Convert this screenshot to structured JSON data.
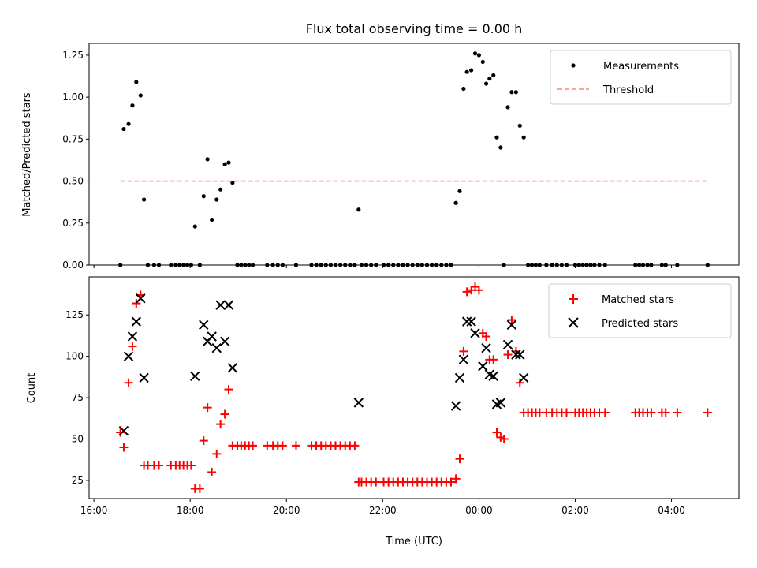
{
  "title": "Flux total observing time = 0.00 h",
  "top_ylabel": "Matched/Predicted stars",
  "bottom_ylabel": "Count",
  "xlabel": "Time (UTC)",
  "colors": {
    "measurements": "#000000",
    "threshold": "#ff8080",
    "matched": "#ff0000",
    "predicted": "#000000"
  },
  "chart_data": [
    {
      "type": "scatter",
      "title": "Flux total observing time = 0.00 h",
      "xlabel": "",
      "ylabel": "Matched/Predicted stars",
      "x_units": "hours since 16:00 UTC",
      "xlim": [
        -0.1,
        13.4
      ],
      "ylim": [
        0,
        1.32
      ],
      "x_ticks": [
        "16:00",
        "18:00",
        "20:00",
        "22:00",
        "00:00",
        "02:00",
        "04:00"
      ],
      "y_ticks": [
        "0.00",
        "0.25",
        "0.50",
        "0.75",
        "1.00",
        "1.25"
      ],
      "legend_position": "top-right",
      "grid": false,
      "series": [
        {
          "name": "Measurements",
          "marker": "dot",
          "points": [
            [
              0.55,
              0
            ],
            [
              0.62,
              0.81
            ],
            [
              0.72,
              0.84
            ],
            [
              0.8,
              0.95
            ],
            [
              0.88,
              1.09
            ],
            [
              0.97,
              1.01
            ],
            [
              1.04,
              0.39
            ],
            [
              1.12,
              0
            ],
            [
              1.25,
              0
            ],
            [
              1.35,
              0
            ],
            [
              1.6,
              0
            ],
            [
              1.7,
              0
            ],
            [
              1.78,
              0
            ],
            [
              1.86,
              0
            ],
            [
              1.94,
              0
            ],
            [
              2.02,
              0
            ],
            [
              2.1,
              0.23
            ],
            [
              2.2,
              0
            ],
            [
              2.28,
              0.41
            ],
            [
              2.36,
              0.63
            ],
            [
              2.45,
              0.27
            ],
            [
              2.55,
              0.39
            ],
            [
              2.63,
              0.45
            ],
            [
              2.72,
              0.6
            ],
            [
              2.8,
              0.61
            ],
            [
              2.88,
              0.49
            ],
            [
              2.98,
              0
            ],
            [
              3.06,
              0
            ],
            [
              3.14,
              0
            ],
            [
              3.22,
              0
            ],
            [
              3.3,
              0
            ],
            [
              3.6,
              0
            ],
            [
              3.72,
              0
            ],
            [
              3.82,
              0
            ],
            [
              3.92,
              0
            ],
            [
              4.2,
              0
            ],
            [
              4.52,
              0
            ],
            [
              4.62,
              0
            ],
            [
              4.72,
              0
            ],
            [
              4.82,
              0
            ],
            [
              4.92,
              0
            ],
            [
              5.02,
              0
            ],
            [
              5.12,
              0
            ],
            [
              5.22,
              0
            ],
            [
              5.32,
              0
            ],
            [
              5.42,
              0
            ],
            [
              5.5,
              0.33
            ],
            [
              5.56,
              0
            ],
            [
              5.66,
              0
            ],
            [
              5.76,
              0
            ],
            [
              5.86,
              0
            ],
            [
              6.02,
              0
            ],
            [
              6.12,
              0
            ],
            [
              6.22,
              0
            ],
            [
              6.32,
              0
            ],
            [
              6.42,
              0
            ],
            [
              6.52,
              0
            ],
            [
              6.62,
              0
            ],
            [
              6.72,
              0
            ],
            [
              6.82,
              0
            ],
            [
              6.92,
              0
            ],
            [
              7.02,
              0
            ],
            [
              7.12,
              0
            ],
            [
              7.22,
              0
            ],
            [
              7.32,
              0
            ],
            [
              7.42,
              0
            ],
            [
              7.52,
              0.37
            ],
            [
              7.6,
              0.44
            ],
            [
              7.68,
              1.05
            ],
            [
              7.75,
              1.15
            ],
            [
              7.84,
              1.16
            ],
            [
              7.92,
              1.26
            ],
            [
              8.0,
              1.25
            ],
            [
              8.08,
              1.21
            ],
            [
              8.15,
              1.08
            ],
            [
              8.22,
              1.11
            ],
            [
              8.3,
              1.13
            ],
            [
              8.37,
              0.76
            ],
            [
              8.45,
              0.7
            ],
            [
              8.52,
              0
            ],
            [
              8.6,
              0.94
            ],
            [
              8.68,
              1.03
            ],
            [
              8.77,
              1.03
            ],
            [
              8.85,
              0.83
            ],
            [
              8.93,
              0.76
            ],
            [
              9.02,
              0
            ],
            [
              9.1,
              0
            ],
            [
              9.18,
              0
            ],
            [
              9.26,
              0
            ],
            [
              9.4,
              0
            ],
            [
              9.52,
              0
            ],
            [
              9.62,
              0
            ],
            [
              9.72,
              0
            ],
            [
              9.82,
              0
            ],
            [
              10.0,
              0
            ],
            [
              10.08,
              0
            ],
            [
              10.16,
              0
            ],
            [
              10.24,
              0
            ],
            [
              10.32,
              0
            ],
            [
              10.4,
              0
            ],
            [
              10.5,
              0
            ],
            [
              10.62,
              0
            ],
            [
              11.25,
              0
            ],
            [
              11.33,
              0
            ],
            [
              11.41,
              0
            ],
            [
              11.5,
              0
            ],
            [
              11.58,
              0
            ],
            [
              11.8,
              0
            ],
            [
              11.88,
              0
            ],
            [
              12.12,
              0
            ],
            [
              12.75,
              0
            ]
          ]
        },
        {
          "name": "Threshold",
          "style": "dashed",
          "points": [
            [
              0.55,
              0.5
            ],
            [
              12.75,
              0.5
            ]
          ]
        }
      ]
    },
    {
      "type": "scatter",
      "title": "",
      "xlabel": "Time (UTC)",
      "ylabel": "Count",
      "x_units": "hours since 16:00 UTC",
      "xlim": [
        -0.1,
        13.4
      ],
      "ylim": [
        14,
        148
      ],
      "x_ticks": [
        "16:00",
        "18:00",
        "20:00",
        "22:00",
        "00:00",
        "02:00",
        "04:00"
      ],
      "y_ticks": [
        "25",
        "50",
        "75",
        "100",
        "125"
      ],
      "legend_position": "top-right",
      "grid": false,
      "series": [
        {
          "name": "Matched stars",
          "marker": "plus",
          "points": [
            [
              0.55,
              54
            ],
            [
              0.62,
              45
            ],
            [
              0.72,
              84
            ],
            [
              0.8,
              106
            ],
            [
              0.88,
              132
            ],
            [
              0.97,
              137
            ],
            [
              1.04,
              34
            ],
            [
              1.12,
              34
            ],
            [
              1.25,
              34
            ],
            [
              1.35,
              34
            ],
            [
              1.6,
              34
            ],
            [
              1.7,
              34
            ],
            [
              1.78,
              34
            ],
            [
              1.86,
              34
            ],
            [
              1.94,
              34
            ],
            [
              2.02,
              34
            ],
            [
              2.1,
              20
            ],
            [
              2.2,
              20
            ],
            [
              2.28,
              49
            ],
            [
              2.36,
              69
            ],
            [
              2.45,
              30
            ],
            [
              2.55,
              41
            ],
            [
              2.63,
              59
            ],
            [
              2.72,
              65
            ],
            [
              2.8,
              80
            ],
            [
              2.88,
              46
            ],
            [
              2.98,
              46
            ],
            [
              3.06,
              46
            ],
            [
              3.14,
              46
            ],
            [
              3.22,
              46
            ],
            [
              3.3,
              46
            ],
            [
              3.6,
              46
            ],
            [
              3.72,
              46
            ],
            [
              3.82,
              46
            ],
            [
              3.92,
              46
            ],
            [
              4.2,
              46
            ],
            [
              4.52,
              46
            ],
            [
              4.62,
              46
            ],
            [
              4.72,
              46
            ],
            [
              4.82,
              46
            ],
            [
              4.92,
              46
            ],
            [
              5.02,
              46
            ],
            [
              5.12,
              46
            ],
            [
              5.22,
              46
            ],
            [
              5.32,
              46
            ],
            [
              5.42,
              46
            ],
            [
              5.5,
              24
            ],
            [
              5.56,
              24
            ],
            [
              5.66,
              24
            ],
            [
              5.76,
              24
            ],
            [
              5.86,
              24
            ],
            [
              6.02,
              24
            ],
            [
              6.12,
              24
            ],
            [
              6.22,
              24
            ],
            [
              6.32,
              24
            ],
            [
              6.42,
              24
            ],
            [
              6.52,
              24
            ],
            [
              6.62,
              24
            ],
            [
              6.72,
              24
            ],
            [
              6.82,
              24
            ],
            [
              6.92,
              24
            ],
            [
              7.02,
              24
            ],
            [
              7.12,
              24
            ],
            [
              7.22,
              24
            ],
            [
              7.32,
              24
            ],
            [
              7.42,
              24
            ],
            [
              7.52,
              26
            ],
            [
              7.6,
              38
            ],
            [
              7.68,
              103
            ],
            [
              7.75,
              139
            ],
            [
              7.84,
              140
            ],
            [
              7.92,
              142
            ],
            [
              8.0,
              140
            ],
            [
              8.08,
              114
            ],
            [
              8.15,
              112
            ],
            [
              8.22,
              98
            ],
            [
              8.3,
              98
            ],
            [
              8.37,
              54
            ],
            [
              8.45,
              51
            ],
            [
              8.52,
              50
            ],
            [
              8.6,
              101
            ],
            [
              8.68,
              122
            ],
            [
              8.77,
              103
            ],
            [
              8.85,
              84
            ],
            [
              8.93,
              66
            ],
            [
              9.02,
              66
            ],
            [
              9.1,
              66
            ],
            [
              9.18,
              66
            ],
            [
              9.26,
              66
            ],
            [
              9.4,
              66
            ],
            [
              9.52,
              66
            ],
            [
              9.62,
              66
            ],
            [
              9.72,
              66
            ],
            [
              9.82,
              66
            ],
            [
              10.0,
              66
            ],
            [
              10.08,
              66
            ],
            [
              10.16,
              66
            ],
            [
              10.24,
              66
            ],
            [
              10.32,
              66
            ],
            [
              10.4,
              66
            ],
            [
              10.5,
              66
            ],
            [
              10.62,
              66
            ],
            [
              11.25,
              66
            ],
            [
              11.33,
              66
            ],
            [
              11.41,
              66
            ],
            [
              11.5,
              66
            ],
            [
              11.58,
              66
            ],
            [
              11.8,
              66
            ],
            [
              11.88,
              66
            ],
            [
              12.12,
              66
            ],
            [
              12.75,
              66
            ]
          ]
        },
        {
          "name": "Predicted stars",
          "marker": "x",
          "points": [
            [
              0.62,
              55
            ],
            [
              0.72,
              100
            ],
            [
              0.8,
              112
            ],
            [
              0.88,
              121
            ],
            [
              0.97,
              135
            ],
            [
              1.04,
              87
            ],
            [
              2.1,
              88
            ],
            [
              2.28,
              119
            ],
            [
              2.36,
              109
            ],
            [
              2.45,
              112
            ],
            [
              2.55,
              105
            ],
            [
              2.63,
              131
            ],
            [
              2.72,
              109
            ],
            [
              2.8,
              131
            ],
            [
              2.88,
              93
            ],
            [
              5.5,
              72
            ],
            [
              7.52,
              70
            ],
            [
              7.6,
              87
            ],
            [
              7.68,
              98
            ],
            [
              7.75,
              121
            ],
            [
              7.84,
              121
            ],
            [
              7.92,
              114
            ],
            [
              8.08,
              94
            ],
            [
              8.15,
              105
            ],
            [
              8.22,
              89
            ],
            [
              8.3,
              88
            ],
            [
              8.37,
              71
            ],
            [
              8.45,
              72
            ],
            [
              8.6,
              107
            ],
            [
              8.68,
              119
            ],
            [
              8.77,
              101
            ],
            [
              8.85,
              101
            ],
            [
              8.93,
              87
            ]
          ]
        }
      ]
    }
  ]
}
